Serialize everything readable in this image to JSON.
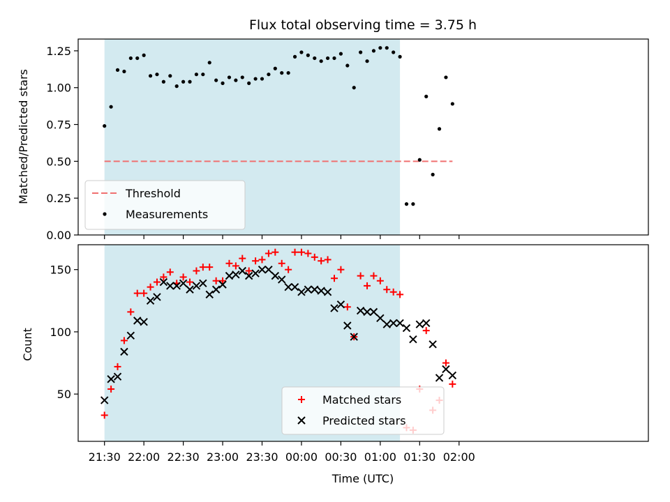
{
  "chart_data": [
    {
      "type": "scatter",
      "title": "Flux total observing time = 3.75 h",
      "xlabel": "",
      "ylabel": "Matched/Predicted stars",
      "ylim": [
        0.0,
        1.33
      ],
      "yticks": [
        "0.00",
        "0.25",
        "0.50",
        "0.75",
        "1.00",
        "1.25"
      ],
      "x_tick_labels": [
        "21:30",
        "22:00",
        "22:30",
        "23:00",
        "23:30",
        "00:00",
        "00:30",
        "01:00",
        "01:30",
        "02:00"
      ],
      "shaded_interval": [
        "21:30",
        "01:15"
      ],
      "shaded_color": "#d3eaf0",
      "threshold": {
        "name": "Threshold",
        "value": 0.5,
        "color": "#f07070"
      },
      "legend": {
        "placement": "lower-left",
        "entries": [
          "Threshold",
          "Measurements"
        ]
      },
      "series": [
        {
          "name": "Measurements",
          "color": "#000000",
          "points": [
            [
              "21:30",
              0.74
            ],
            [
              "21:35",
              0.87
            ],
            [
              "21:40",
              1.12
            ],
            [
              "21:45",
              1.11
            ],
            [
              "21:50",
              1.2
            ],
            [
              "21:55",
              1.2
            ],
            [
              "22:00",
              1.22
            ],
            [
              "22:05",
              1.08
            ],
            [
              "22:10",
              1.09
            ],
            [
              "22:15",
              1.04
            ],
            [
              "22:20",
              1.08
            ],
            [
              "22:25",
              1.01
            ],
            [
              "22:30",
              1.04
            ],
            [
              "22:35",
              1.04
            ],
            [
              "22:40",
              1.09
            ],
            [
              "22:45",
              1.09
            ],
            [
              "22:50",
              1.17
            ],
            [
              "22:55",
              1.05
            ],
            [
              "23:00",
              1.03
            ],
            [
              "23:05",
              1.07
            ],
            [
              "23:10",
              1.05
            ],
            [
              "23:15",
              1.07
            ],
            [
              "23:20",
              1.03
            ],
            [
              "23:25",
              1.06
            ],
            [
              "23:30",
              1.06
            ],
            [
              "23:35",
              1.09
            ],
            [
              "23:40",
              1.13
            ],
            [
              "23:45",
              1.1
            ],
            [
              "23:50",
              1.1
            ],
            [
              "23:55",
              1.21
            ],
            [
              "00:00",
              1.24
            ],
            [
              "00:05",
              1.22
            ],
            [
              "00:10",
              1.2
            ],
            [
              "00:15",
              1.18
            ],
            [
              "00:20",
              1.2
            ],
            [
              "00:25",
              1.2
            ],
            [
              "00:30",
              1.23
            ],
            [
              "00:35",
              1.15
            ],
            [
              "00:40",
              1.0
            ],
            [
              "00:45",
              1.24
            ],
            [
              "00:50",
              1.18
            ],
            [
              "00:55",
              1.25
            ],
            [
              "01:00",
              1.27
            ],
            [
              "01:05",
              1.27
            ],
            [
              "01:10",
              1.24
            ],
            [
              "01:15",
              1.21
            ],
            [
              "01:20",
              0.21
            ],
            [
              "01:25",
              0.21
            ],
            [
              "01:30",
              0.51
            ],
            [
              "01:35",
              0.94
            ],
            [
              "01:40",
              0.41
            ],
            [
              "01:45",
              0.72
            ],
            [
              "01:50",
              1.07
            ],
            [
              "01:55",
              0.89
            ]
          ]
        }
      ]
    },
    {
      "type": "scatter",
      "title": "",
      "xlabel": "Time (UTC)",
      "ylabel": "Count",
      "ylim": [
        12,
        170
      ],
      "yticks": [
        "50",
        "100",
        "150"
      ],
      "x_tick_labels": [
        "21:30",
        "22:00",
        "22:30",
        "23:00",
        "23:30",
        "00:00",
        "00:30",
        "01:00",
        "01:30",
        "02:00"
      ],
      "shaded_interval": [
        "21:30",
        "01:15"
      ],
      "shaded_color": "#d3eaf0",
      "legend": {
        "placement": "lower-center",
        "entries": [
          "Matched stars",
          "Predicted stars"
        ]
      },
      "series": [
        {
          "name": "Matched stars",
          "color": "#ff0000",
          "marker": "plus",
          "points": [
            [
              "21:30",
              33
            ],
            [
              "21:35",
              54
            ],
            [
              "21:40",
              72
            ],
            [
              "21:45",
              93
            ],
            [
              "21:50",
              116
            ],
            [
              "21:55",
              131
            ],
            [
              "22:00",
              131
            ],
            [
              "22:05",
              136
            ],
            [
              "22:10",
              140
            ],
            [
              "22:15",
              144
            ],
            [
              "22:20",
              148
            ],
            [
              "22:25",
              139
            ],
            [
              "22:30",
              144
            ],
            [
              "22:35",
              140
            ],
            [
              "22:40",
              149
            ],
            [
              "22:45",
              152
            ],
            [
              "22:50",
              152
            ],
            [
              "22:55",
              141
            ],
            [
              "23:00",
              141
            ],
            [
              "23:05",
              155
            ],
            [
              "23:10",
              153
            ],
            [
              "23:15",
              159
            ],
            [
              "23:20",
              149
            ],
            [
              "23:25",
              157
            ],
            [
              "23:30",
              158
            ],
            [
              "23:35",
              163
            ],
            [
              "23:40",
              164
            ],
            [
              "23:45",
              155
            ],
            [
              "23:50",
              150
            ],
            [
              "23:55",
              164
            ],
            [
              "00:00",
              164
            ],
            [
              "00:05",
              163
            ],
            [
              "00:10",
              160
            ],
            [
              "00:15",
              157
            ],
            [
              "00:20",
              158
            ],
            [
              "00:25",
              143
            ],
            [
              "00:30",
              150
            ],
            [
              "00:35",
              120
            ],
            [
              "00:40",
              96
            ],
            [
              "00:45",
              145
            ],
            [
              "00:50",
              137
            ],
            [
              "00:55",
              145
            ],
            [
              "01:00",
              141
            ],
            [
              "01:05",
              134
            ],
            [
              "01:10",
              132
            ],
            [
              "01:15",
              130
            ],
            [
              "01:20",
              23
            ],
            [
              "01:25",
              21
            ],
            [
              "01:30",
              54
            ],
            [
              "01:35",
              101
            ],
            [
              "01:40",
              37
            ],
            [
              "01:45",
              45
            ],
            [
              "01:50",
              75
            ],
            [
              "01:55",
              58
            ]
          ]
        },
        {
          "name": "Predicted stars",
          "color": "#000000",
          "marker": "x",
          "points": [
            [
              "21:30",
              45
            ],
            [
              "21:35",
              62
            ],
            [
              "21:40",
              64
            ],
            [
              "21:45",
              84
            ],
            [
              "21:50",
              97
            ],
            [
              "21:55",
              109
            ],
            [
              "22:00",
              108
            ],
            [
              "22:05",
              125
            ],
            [
              "22:10",
              128
            ],
            [
              "22:15",
              140
            ],
            [
              "22:20",
              137
            ],
            [
              "22:25",
              137
            ],
            [
              "22:30",
              139
            ],
            [
              "22:35",
              134
            ],
            [
              "22:40",
              137
            ],
            [
              "22:45",
              139
            ],
            [
              "22:50",
              130
            ],
            [
              "22:55",
              134
            ],
            [
              "23:00",
              138
            ],
            [
              "23:05",
              145
            ],
            [
              "23:10",
              146
            ],
            [
              "23:15",
              149
            ],
            [
              "23:20",
              145
            ],
            [
              "23:25",
              147
            ],
            [
              "23:30",
              150
            ],
            [
              "23:35",
              150
            ],
            [
              "23:40",
              145
            ],
            [
              "23:45",
              142
            ],
            [
              "23:50",
              136
            ],
            [
              "23:55",
              136
            ],
            [
              "00:00",
              132
            ],
            [
              "00:05",
              134
            ],
            [
              "00:10",
              134
            ],
            [
              "00:15",
              133
            ],
            [
              "00:20",
              132
            ],
            [
              "00:25",
              119
            ],
            [
              "00:30",
              122
            ],
            [
              "00:35",
              105
            ],
            [
              "00:40",
              96
            ],
            [
              "00:45",
              117
            ],
            [
              "00:50",
              116
            ],
            [
              "00:55",
              116
            ],
            [
              "01:00",
              111
            ],
            [
              "01:05",
              106
            ],
            [
              "01:10",
              107
            ],
            [
              "01:15",
              107
            ],
            [
              "01:20",
              103
            ],
            [
              "01:25",
              94
            ],
            [
              "01:30",
              106
            ],
            [
              "01:35",
              107
            ],
            [
              "01:40",
              90
            ],
            [
              "01:45",
              63
            ],
            [
              "01:50",
              70
            ],
            [
              "01:55",
              65
            ]
          ]
        }
      ]
    }
  ]
}
